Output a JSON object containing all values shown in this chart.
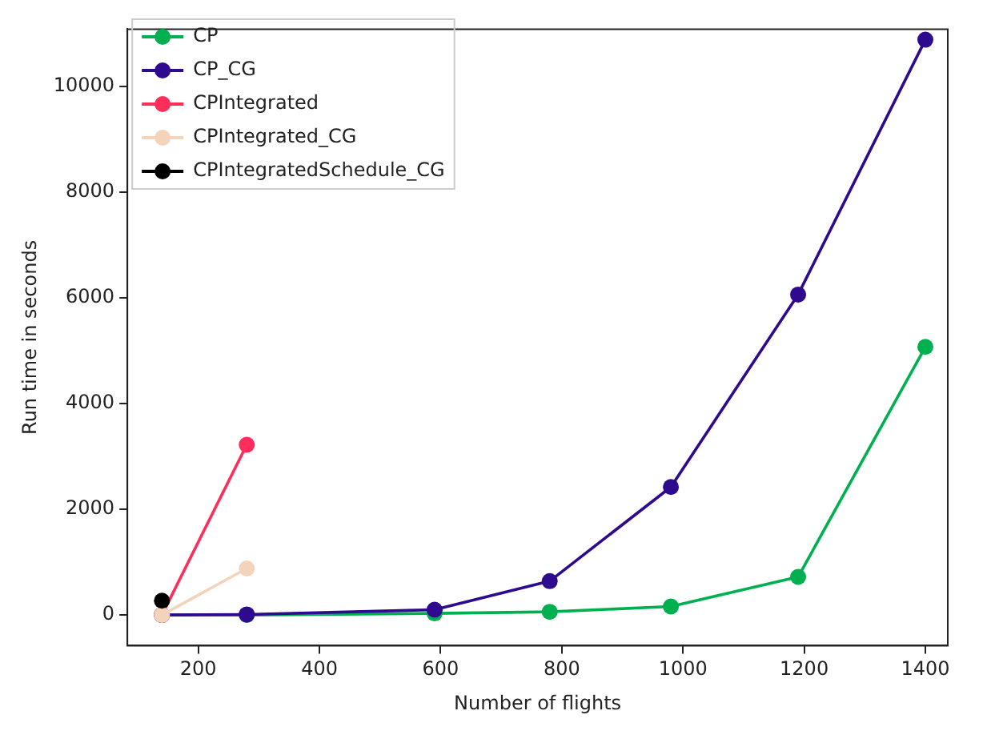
{
  "chart_data": {
    "type": "line",
    "xlabel": "Number of flights",
    "ylabel": "Run time in seconds",
    "xlim": [
      83,
      1437
    ],
    "xticks": [
      200,
      400,
      600,
      800,
      1000,
      1200,
      1400
    ],
    "ylim": [
      -580,
      11080
    ],
    "yticks": [
      0,
      2000,
      4000,
      6000,
      8000,
      10000
    ],
    "grid": false,
    "legend": "top left",
    "marker": "circle",
    "line_style": "solid",
    "series": [
      {
        "name": "CP",
        "color": "#00b050",
        "x": [
          140,
          280,
          590,
          780,
          980,
          1190,
          1400
        ],
        "values": [
          0,
          0,
          30,
          60,
          160,
          720,
          5070
        ]
      },
      {
        "name": "CP_CG",
        "color": "#2e0a8e",
        "x": [
          140,
          280,
          590,
          780,
          980,
          1190,
          1400
        ],
        "values": [
          0,
          10,
          100,
          640,
          2420,
          6060,
          10880
        ]
      },
      {
        "name": "CPIntegrated",
        "color": "#ff2d5a",
        "x": [
          140,
          280
        ],
        "values": [
          0,
          3220
        ]
      },
      {
        "name": "CPIntegrated_CG",
        "color": "#f4d3bb",
        "x": [
          140,
          280
        ],
        "values": [
          0,
          880
        ]
      },
      {
        "name": "CPIntegratedSchedule_CG",
        "color": "#000000",
        "x": [
          140
        ],
        "values": [
          270
        ]
      }
    ]
  }
}
